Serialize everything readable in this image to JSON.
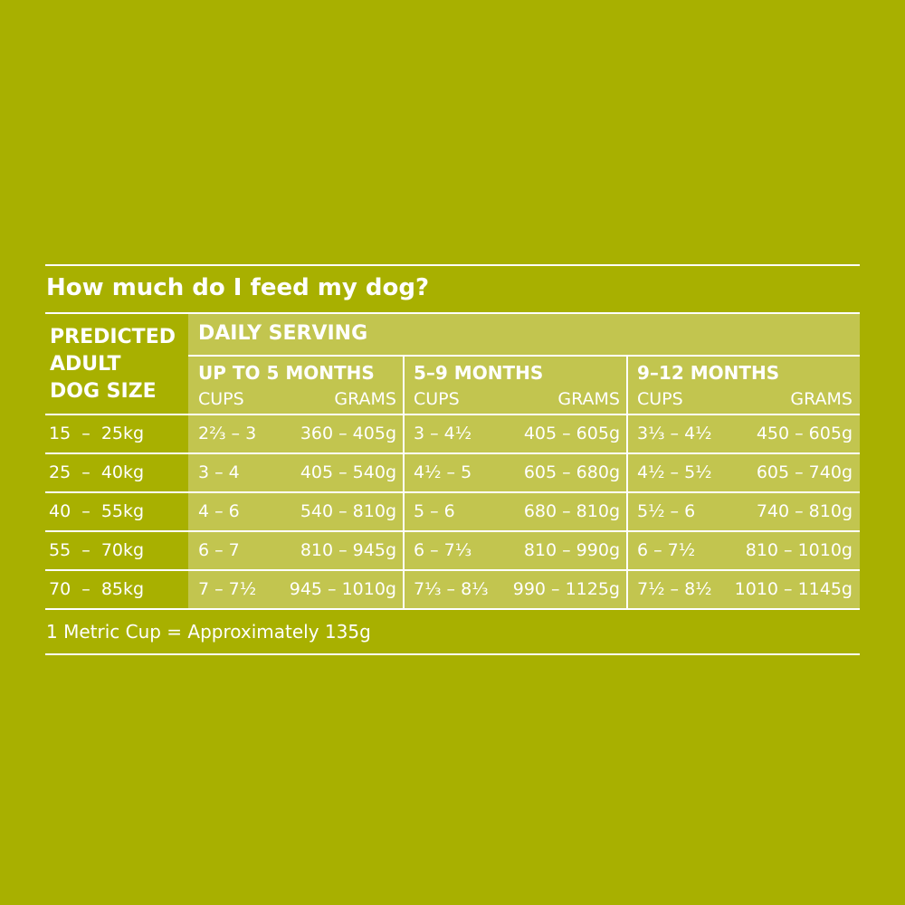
{
  "title": "How much do I feed my dog?",
  "table": {
    "size_header": [
      "PREDICTED",
      "ADULT",
      "DOG SIZE"
    ],
    "group_header": "DAILY SERVING",
    "groups": [
      {
        "label": "UP TO 5 MONTHS",
        "cups": "CUPS",
        "grams": "GRAMS"
      },
      {
        "label": "5–9 MONTHS",
        "cups": "CUPS",
        "grams": "GRAMS"
      },
      {
        "label": "9–12 MONTHS",
        "cups": "CUPS",
        "grams": "GRAMS"
      }
    ],
    "rows": [
      {
        "size": "15  –  25kg",
        "cells": [
          "2⅔ – 3",
          "360 – 405g",
          "3 – 4½",
          "405 – 605g",
          "3⅓ – 4½",
          "450 – 605g"
        ]
      },
      {
        "size": "25  –  40kg",
        "cells": [
          "3 – 4",
          "405 – 540g",
          "4½ – 5",
          "605 – 680g",
          "4½ – 5½",
          "605 – 740g"
        ]
      },
      {
        "size": "40  –  55kg",
        "cells": [
          "4 – 6",
          "540 – 810g",
          "5 – 6",
          "680 – 810g",
          "5½ – 6",
          "740 – 810g"
        ]
      },
      {
        "size": "55  –  70kg",
        "cells": [
          "6 – 7",
          "810 – 945g",
          "6 – 7⅓",
          "810 – 990g",
          "6 – 7½",
          "810 – 1010g"
        ]
      },
      {
        "size": "70  –  85kg",
        "cells": [
          "7 – 7½",
          "945 – 1010g",
          "7⅓ – 8⅓",
          "990 – 1125g",
          "7½ – 8½",
          "1010 – 1145g"
        ]
      }
    ]
  },
  "footnote": "1 Metric Cup = Approximately 135g"
}
